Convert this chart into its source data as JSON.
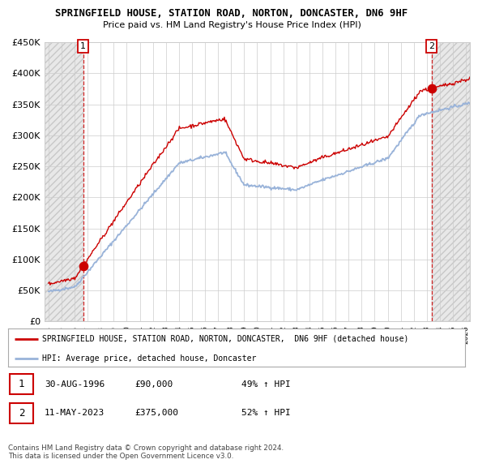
{
  "title1": "SPRINGFIELD HOUSE, STATION ROAD, NORTON, DONCASTER, DN6 9HF",
  "title2": "Price paid vs. HM Land Registry's House Price Index (HPI)",
  "ylim": [
    0,
    450000
  ],
  "ytick_labels": [
    "£0",
    "£50K",
    "£100K",
    "£150K",
    "£200K",
    "£250K",
    "£300K",
    "£350K",
    "£400K",
    "£450K"
  ],
  "xlim_start": 1993.7,
  "xlim_end": 2026.3,
  "sale1_x": 1996.66,
  "sale1_y": 90000,
  "sale2_x": 2023.36,
  "sale2_y": 375000,
  "sale1_label": "1",
  "sale2_label": "2",
  "sale_color": "#cc0000",
  "hpi_color": "#99b3d9",
  "grid_color": "#cccccc",
  "legend_line1": "SPRINGFIELD HOUSE, STATION ROAD, NORTON, DONCASTER,  DN6 9HF (detached house)",
  "legend_line2": "HPI: Average price, detached house, Doncaster",
  "annotation1_date": "30-AUG-1996",
  "annotation1_price": "£90,000",
  "annotation1_hpi": "49% ↑ HPI",
  "annotation2_date": "11-MAY-2023",
  "annotation2_price": "£375,000",
  "annotation2_hpi": "52% ↑ HPI",
  "footer": "Contains HM Land Registry data © Crown copyright and database right 2024.\nThis data is licensed under the Open Government Licence v3.0."
}
